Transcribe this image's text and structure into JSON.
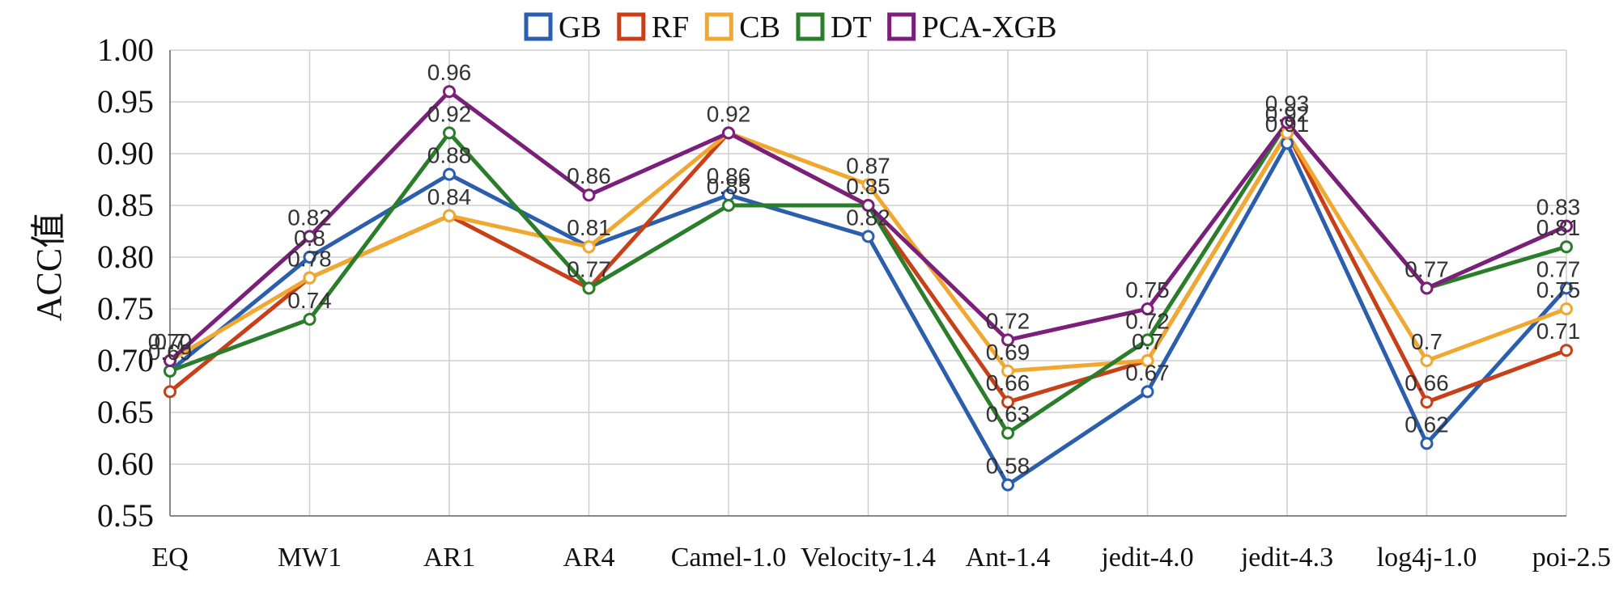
{
  "chart_data": {
    "type": "line",
    "title": "",
    "xlabel": "",
    "ylabel": "ACC值",
    "ylim": [
      0.55,
      1.0
    ],
    "yticks": [
      "0.55",
      "0.60",
      "0.65",
      "0.70",
      "0.75",
      "0.80",
      "0.85",
      "0.90",
      "0.95",
      "1.00"
    ],
    "grid": true,
    "legend_position": "top-center",
    "categories": [
      "EQ",
      "MW1",
      "AR1",
      "AR4",
      "Camel-1.0",
      "Velocity-1.4",
      "Ant-1.4",
      "jedit-4.0",
      "jedit-4.3",
      "log4j-1.0",
      "poi-2.5"
    ],
    "series": [
      {
        "name": "GB",
        "color": "#2b5fae",
        "values": [
          0.69,
          0.8,
          0.88,
          0.81,
          0.86,
          0.82,
          0.58,
          0.67,
          0.91,
          0.62,
          0.77
        ]
      },
      {
        "name": "RF",
        "color": "#c8401a",
        "values": [
          0.67,
          0.78,
          0.84,
          0.77,
          0.92,
          0.85,
          0.66,
          0.7,
          0.92,
          0.66,
          0.71
        ]
      },
      {
        "name": "CB",
        "color": "#f0a830",
        "values": [
          0.7,
          0.78,
          0.84,
          0.81,
          0.92,
          0.87,
          0.69,
          0.7,
          0.92,
          0.7,
          0.75
        ]
      },
      {
        "name": "DT",
        "color": "#2a7d2a",
        "values": [
          0.69,
          0.74,
          0.92,
          0.77,
          0.85,
          0.85,
          0.63,
          0.72,
          0.93,
          0.77,
          0.81
        ]
      },
      {
        "name": "PCA-XGB",
        "color": "#7a1f7a",
        "values": [
          0.7,
          0.82,
          0.96,
          0.86,
          0.92,
          0.85,
          0.72,
          0.75,
          0.93,
          0.77,
          0.83
        ]
      }
    ],
    "data_labels": [
      {
        "text": "0.7",
        "series": 4,
        "point": 0
      },
      {
        "text": "0.69",
        "series": 3,
        "point": 0
      },
      {
        "text": "0.70",
        "series": 2,
        "point": 0
      },
      {
        "text": "0.82",
        "series": 4,
        "point": 1
      },
      {
        "text": "0.8",
        "series": 0,
        "point": 1
      },
      {
        "text": "0.78",
        "series": 1,
        "point": 1
      },
      {
        "text": "0.74",
        "series": 3,
        "point": 1
      },
      {
        "text": "0.96",
        "series": 4,
        "point": 2
      },
      {
        "text": "0.92",
        "series": 3,
        "point": 2
      },
      {
        "text": "0.88",
        "series": 0,
        "point": 2
      },
      {
        "text": "0.84",
        "series": 1,
        "point": 2
      },
      {
        "text": "0.86",
        "series": 4,
        "point": 3
      },
      {
        "text": "0.81",
        "series": 0,
        "point": 3
      },
      {
        "text": "0.77",
        "series": 1,
        "point": 3
      },
      {
        "text": "0.92",
        "series": 4,
        "point": 4
      },
      {
        "text": "0.86",
        "series": 0,
        "point": 4
      },
      {
        "text": "0.85",
        "series": 3,
        "point": 4
      },
      {
        "text": "0.87",
        "series": 2,
        "point": 5
      },
      {
        "text": "0.85",
        "series": 3,
        "point": 5
      },
      {
        "text": "0.82",
        "series": 0,
        "point": 5
      },
      {
        "text": "0.72",
        "series": 4,
        "point": 6
      },
      {
        "text": "0.69",
        "series": 2,
        "point": 6
      },
      {
        "text": "0.66",
        "series": 1,
        "point": 6
      },
      {
        "text": "0.63",
        "series": 3,
        "point": 6
      },
      {
        "text": "0.58",
        "series": 0,
        "point": 6
      },
      {
        "text": "0.75",
        "series": 4,
        "point": 7
      },
      {
        "text": "0.72",
        "series": 3,
        "point": 7
      },
      {
        "text": "0.7",
        "series": 2,
        "point": 7
      },
      {
        "text": "0.67",
        "series": 0,
        "point": 7
      },
      {
        "text": "0.93",
        "series": 4,
        "point": 8
      },
      {
        "text": "0.92",
        "series": 1,
        "point": 8
      },
      {
        "text": "0.91",
        "series": 0,
        "point": 8
      },
      {
        "text": "0.77",
        "series": 4,
        "point": 9
      },
      {
        "text": "0.7",
        "series": 2,
        "point": 9
      },
      {
        "text": "0.66",
        "series": 1,
        "point": 9
      },
      {
        "text": "0.62",
        "series": 0,
        "point": 9
      },
      {
        "text": "0.83",
        "series": 4,
        "point": 10
      },
      {
        "text": "0.81",
        "series": 3,
        "point": 10
      },
      {
        "text": "0.77",
        "series": 0,
        "point": 10
      },
      {
        "text": "0.75",
        "series": 2,
        "point": 10
      },
      {
        "text": "0.71",
        "series": 1,
        "point": 10
      }
    ]
  }
}
